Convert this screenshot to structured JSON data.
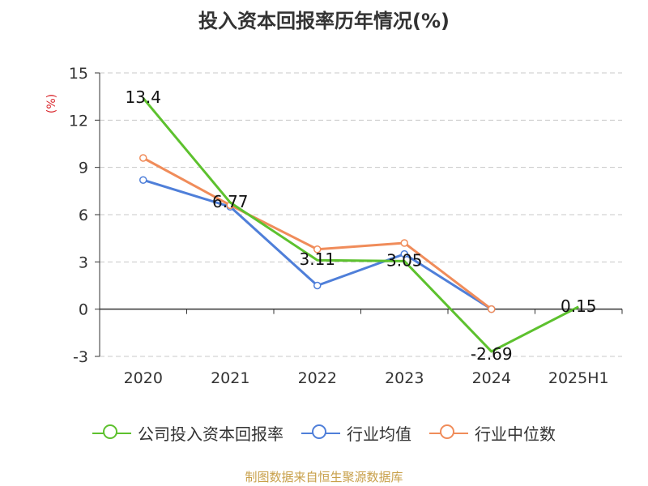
{
  "title": "投入资本回报率历年情况(%)",
  "source": "制图数据来自恒生聚源数据库",
  "chart_data": {
    "type": "line",
    "categories": [
      "2020",
      "2021",
      "2022",
      "2023",
      "2024",
      "2025H1"
    ],
    "ylabel": "(%)",
    "ylim": [
      -3,
      15
    ],
    "yticks": [
      -3,
      0,
      3,
      6,
      9,
      12,
      15
    ],
    "grid": true,
    "legend_position": "bottom",
    "series": [
      {
        "name": "公司投入资本回报率",
        "color": "#5dc12e",
        "values": [
          13.4,
          6.77,
          3.11,
          3.05,
          -2.69,
          0.15
        ],
        "labels": [
          "13.4",
          "6.77",
          "3.11",
          "3.05",
          "-2.69",
          "0.15"
        ]
      },
      {
        "name": "行业均值",
        "color": "#4f7fd9",
        "values": [
          8.2,
          6.5,
          1.5,
          3.5,
          0.0,
          null
        ]
      },
      {
        "name": "行业中位数",
        "color": "#f08c5a",
        "values": [
          9.6,
          6.6,
          3.8,
          4.2,
          0.0,
          null
        ]
      }
    ]
  }
}
